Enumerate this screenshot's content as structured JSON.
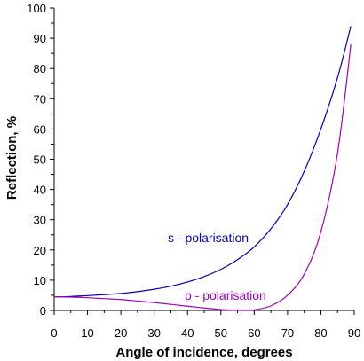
{
  "chart_data": {
    "type": "line",
    "title": "",
    "xlabel": "Angle of incidence, degrees",
    "ylabel": "Reflection, %",
    "xlim": [
      0,
      90
    ],
    "ylim": [
      0,
      100
    ],
    "x_ticks": [
      0,
      10,
      20,
      30,
      40,
      50,
      60,
      70,
      80,
      90
    ],
    "y_ticks": [
      0,
      10,
      20,
      30,
      40,
      50,
      60,
      70,
      80,
      90,
      100
    ],
    "grid": false,
    "legend": "none",
    "series": [
      {
        "name": "s - polarisation",
        "color": "#0000c0",
        "x": [
          0,
          5,
          10,
          15,
          20,
          25,
          30,
          35,
          40,
          45,
          50,
          55,
          60,
          65,
          70,
          75,
          80,
          85,
          89
        ],
        "y": [
          4.5,
          4.6,
          4.9,
          5.2,
          5.6,
          6.2,
          7.0,
          8.0,
          9.4,
          11.2,
          13.6,
          16.8,
          21.0,
          27.0,
          35.0,
          46.0,
          60.0,
          77.0,
          94.0
        ]
      },
      {
        "name": "p - polarisation",
        "color": "#a000c0",
        "x": [
          0,
          5,
          10,
          15,
          20,
          25,
          30,
          35,
          40,
          45,
          50,
          55,
          57,
          60,
          65,
          70,
          75,
          80,
          85,
          89
        ],
        "y": [
          4.5,
          4.4,
          4.2,
          3.9,
          3.6,
          3.1,
          2.6,
          2.0,
          1.4,
          0.8,
          0.3,
          0.02,
          0.0,
          0.2,
          1.5,
          5.0,
          12.0,
          26.0,
          52.0,
          88.0
        ]
      }
    ]
  }
}
